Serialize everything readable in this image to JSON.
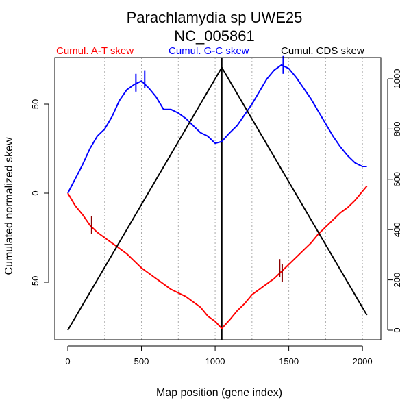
{
  "chart_data": {
    "type": "line",
    "title": "Parachlamydia sp UWE25",
    "subtitle": "NC_005861",
    "xlabel": "Map position (gene index)",
    "ylabel": "Cumulated normalized skew",
    "xlim": [
      0,
      2030
    ],
    "ylim_left": [
      -75,
      70
    ],
    "ylim_right": [
      0,
      1050
    ],
    "x_ticks": [
      0,
      500,
      1000,
      1500,
      2000
    ],
    "y_ticks_left": [
      -50,
      0,
      50
    ],
    "y_ticks_right": [
      0,
      200,
      400,
      600,
      800,
      1000
    ],
    "vertical_grid": [
      250,
      500,
      750,
      1000,
      1250,
      1500,
      1750,
      2000
    ],
    "legend": {
      "at": "Cumul. A-T skew",
      "gc": "Cumul. G-C skew",
      "cds": "Cumul. CDS skew"
    },
    "colors": {
      "at": "#ff0000",
      "gc": "#0000ff",
      "cds": "#000000",
      "marker_at": "#8b0000"
    },
    "origin_line_x": 1045,
    "series": [
      {
        "name": "Cumul. A-T skew",
        "axis": "left",
        "x": [
          0,
          50,
          100,
          150,
          200,
          250,
          300,
          350,
          400,
          450,
          500,
          550,
          600,
          650,
          700,
          750,
          800,
          850,
          900,
          950,
          1000,
          1045,
          1100,
          1150,
          1200,
          1250,
          1300,
          1350,
          1400,
          1450,
          1500,
          1550,
          1600,
          1650,
          1700,
          1750,
          1800,
          1850,
          1900,
          1950,
          2000,
          2030
        ],
        "y": [
          0,
          -7,
          -12,
          -18,
          -22,
          -25,
          -28,
          -31,
          -34,
          -38,
          -42,
          -45,
          -48,
          -51,
          -54,
          -56,
          -58,
          -61,
          -64,
          -69,
          -72,
          -76,
          -71,
          -66,
          -62,
          -57,
          -54,
          -51,
          -48,
          -44,
          -40,
          -36,
          -32,
          -28,
          -23,
          -19,
          -15,
          -11,
          -8,
          -4,
          1,
          4
        ]
      },
      {
        "name": "Cumul. G-C skew",
        "axis": "left",
        "x": [
          0,
          50,
          100,
          150,
          200,
          250,
          300,
          350,
          400,
          450,
          500,
          550,
          600,
          650,
          700,
          750,
          800,
          850,
          900,
          950,
          1000,
          1045,
          1100,
          1150,
          1200,
          1250,
          1300,
          1350,
          1400,
          1450,
          1500,
          1550,
          1600,
          1650,
          1700,
          1750,
          1800,
          1850,
          1900,
          1950,
          2000,
          2030
        ],
        "y": [
          0,
          8,
          16,
          25,
          32,
          36,
          43,
          52,
          58,
          61,
          63,
          59,
          54,
          47,
          47,
          45,
          42,
          38,
          34,
          32,
          28,
          29,
          34,
          38,
          44,
          50,
          57,
          64,
          69,
          72,
          70,
          65,
          59,
          53,
          46,
          39,
          32,
          26,
          21,
          17,
          15,
          15
        ]
      },
      {
        "name": "Cumul. CDS skew",
        "axis": "right",
        "x": [
          0,
          1045,
          2030
        ],
        "y": [
          0,
          1045,
          60
        ]
      }
    ],
    "markers": [
      {
        "series": "Cumul. A-T skew",
        "x": 162,
        "y": -18
      },
      {
        "series": "Cumul. A-T skew",
        "x": 1438,
        "y": -42
      },
      {
        "series": "Cumul. A-T skew",
        "x": 1455,
        "y": -45
      },
      {
        "series": "Cumul. G-C skew",
        "x": 462,
        "y": 62
      },
      {
        "series": "Cumul. G-C skew",
        "x": 522,
        "y": 64
      },
      {
        "series": "Cumul. G-C skew",
        "x": 1462,
        "y": 72
      }
    ]
  }
}
